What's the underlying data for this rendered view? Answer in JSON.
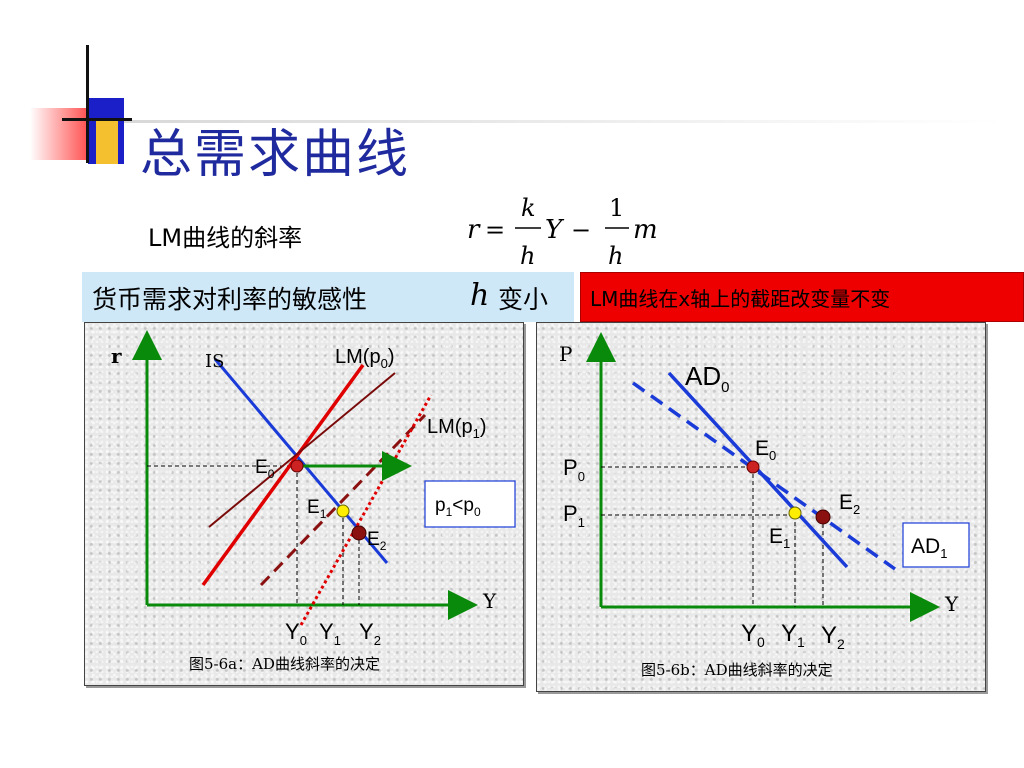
{
  "title": "总需求曲线",
  "lm_slope_label": "LM曲线的斜率",
  "formula": {
    "lhs": "r",
    "eq": "=",
    "k": "k",
    "h": "h",
    "Y": "Y",
    "minus": "−",
    "one": "1",
    "m": "m"
  },
  "sensitivity_text": "货币需求对利率的敏感性",
  "sensitivity_h": "h",
  "sensitivity_change": "变小",
  "red_note": "LM曲线在x轴上的截距改变量不变",
  "colors": {
    "title": "#1f2a9e",
    "blue_line": "#1a3bd8",
    "red_line": "#e00000",
    "dark_red": "#8b1010",
    "axis_green": "#0a8a0a",
    "note_red": "#ee0000",
    "info_blue": "#cfe8f8"
  },
  "panel_a": {
    "y_axis": "r",
    "x_axis": "Y",
    "is_label": "IS",
    "lm0_label": "LM(p",
    "lm0_sub": "0",
    "lm1_label": "LM(p",
    "lm1_sub": "1",
    "e0": "E",
    "e0_sub": "0",
    "e1": "E",
    "e1_sub": "1",
    "e2": "E",
    "e2_sub": "2",
    "y0": "Y",
    "y0_sub": "0",
    "y1": "Y",
    "y1_sub": "1",
    "y2": "Y",
    "y2_sub": "2",
    "cond_p1": "p",
    "cond_sub1": "1",
    "cond_lt": "<p",
    "cond_sub0": "0",
    "caption": "图5-6a：AD曲线斜率的决定"
  },
  "panel_b": {
    "y_axis": "P",
    "x_axis": "Y",
    "ad0": "AD",
    "ad0_sub": "0",
    "ad1": "AD",
    "ad1_sub": "1",
    "p0": "P",
    "p0_sub": "0",
    "p1": "P",
    "p1_sub": "1",
    "e0": "E",
    "e0_sub": "0",
    "e1": "E",
    "e1_sub": "1",
    "e2": "E",
    "e2_sub": "2",
    "y0": "Y",
    "y0_sub": "0",
    "y1": "Y",
    "y1_sub": "1",
    "y2": "Y",
    "y2_sub": "2",
    "caption": "图5-6b：AD曲线斜率的决定"
  }
}
